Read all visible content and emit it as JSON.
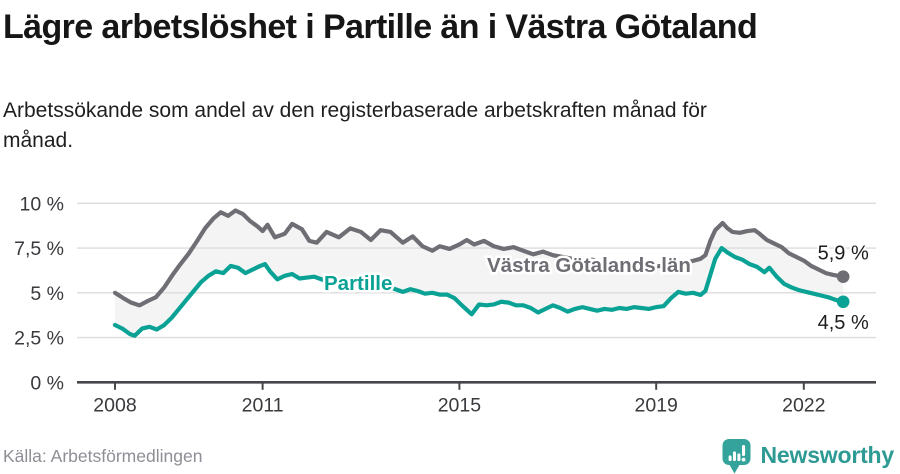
{
  "header": {
    "title": "Lägre arbetslöshet i Partille än i Västra Götaland",
    "subtitle": "Arbetssökande som andel av den registerbaserade arbetskraften månad för månad."
  },
  "chart_data": {
    "type": "line",
    "x_axis": {
      "label": "",
      "ticks": [
        2008,
        2011,
        2015,
        2019,
        2022
      ],
      "range": [
        2008,
        2022.8
      ]
    },
    "y_axis": {
      "label": "",
      "unit": "%",
      "ticks": [
        0,
        2.5,
        5,
        7.5,
        10
      ],
      "tick_labels": [
        "0 %",
        "2,5 %",
        "5 %",
        "7,5 %",
        "10 %"
      ],
      "range": [
        0,
        10.5
      ]
    },
    "grid": true,
    "area_between_series": true,
    "series": [
      {
        "name": "Västra Götalands län",
        "color": "#6e6e74",
        "end_label": "5,9 %",
        "end_value": 5.9,
        "points": [
          [
            2008.0,
            5.0
          ],
          [
            2008.17,
            4.7
          ],
          [
            2008.33,
            4.45
          ],
          [
            2008.5,
            4.3
          ],
          [
            2008.67,
            4.55
          ],
          [
            2008.83,
            4.75
          ],
          [
            2009.0,
            5.3
          ],
          [
            2009.17,
            6.0
          ],
          [
            2009.33,
            6.6
          ],
          [
            2009.5,
            7.2
          ],
          [
            2009.67,
            7.9
          ],
          [
            2009.83,
            8.6
          ],
          [
            2010.0,
            9.15
          ],
          [
            2010.15,
            9.5
          ],
          [
            2010.3,
            9.3
          ],
          [
            2010.45,
            9.6
          ],
          [
            2010.6,
            9.4
          ],
          [
            2010.75,
            9.0
          ],
          [
            2010.9,
            8.7
          ],
          [
            2011.0,
            8.45
          ],
          [
            2011.1,
            8.8
          ],
          [
            2011.25,
            8.1
          ],
          [
            2011.45,
            8.3
          ],
          [
            2011.6,
            8.85
          ],
          [
            2011.8,
            8.55
          ],
          [
            2011.95,
            7.9
          ],
          [
            2012.1,
            7.8
          ],
          [
            2012.3,
            8.4
          ],
          [
            2012.55,
            8.1
          ],
          [
            2012.78,
            8.6
          ],
          [
            2013.0,
            8.4
          ],
          [
            2013.2,
            7.95
          ],
          [
            2013.4,
            8.5
          ],
          [
            2013.6,
            8.4
          ],
          [
            2013.85,
            7.8
          ],
          [
            2014.05,
            8.15
          ],
          [
            2014.25,
            7.6
          ],
          [
            2014.45,
            7.35
          ],
          [
            2014.6,
            7.6
          ],
          [
            2014.8,
            7.45
          ],
          [
            2015.0,
            7.7
          ],
          [
            2015.15,
            7.95
          ],
          [
            2015.3,
            7.7
          ],
          [
            2015.5,
            7.9
          ],
          [
            2015.7,
            7.6
          ],
          [
            2015.9,
            7.45
          ],
          [
            2016.1,
            7.55
          ],
          [
            2016.3,
            7.35
          ],
          [
            2016.5,
            7.15
          ],
          [
            2016.7,
            7.3
          ],
          [
            2016.9,
            7.1
          ],
          [
            2017.1,
            7.0
          ],
          [
            2017.3,
            6.9
          ],
          [
            2017.5,
            6.75
          ],
          [
            2017.7,
            6.85
          ],
          [
            2017.9,
            6.7
          ],
          [
            2018.1,
            6.6
          ],
          [
            2018.3,
            6.5
          ],
          [
            2018.5,
            6.4
          ],
          [
            2018.7,
            6.5
          ],
          [
            2018.9,
            6.45
          ],
          [
            2019.1,
            6.5
          ],
          [
            2019.3,
            6.6
          ],
          [
            2019.5,
            6.7
          ],
          [
            2019.7,
            6.75
          ],
          [
            2019.9,
            6.9
          ],
          [
            2020.0,
            7.1
          ],
          [
            2020.1,
            7.9
          ],
          [
            2020.2,
            8.5
          ],
          [
            2020.35,
            8.9
          ],
          [
            2020.45,
            8.6
          ],
          [
            2020.55,
            8.4
          ],
          [
            2020.7,
            8.35
          ],
          [
            2020.85,
            8.45
          ],
          [
            2021.0,
            8.5
          ],
          [
            2021.1,
            8.3
          ],
          [
            2021.25,
            7.95
          ],
          [
            2021.4,
            7.75
          ],
          [
            2021.55,
            7.55
          ],
          [
            2021.7,
            7.2
          ],
          [
            2021.85,
            7.0
          ],
          [
            2022.0,
            6.8
          ],
          [
            2022.15,
            6.5
          ],
          [
            2022.3,
            6.3
          ],
          [
            2022.45,
            6.1
          ],
          [
            2022.6,
            6.0
          ],
          [
            2022.7,
            5.95
          ],
          [
            2022.8,
            5.9
          ]
        ]
      },
      {
        "name": "Partille",
        "color": "#0ba296",
        "end_label": "4,5 %",
        "end_value": 4.5,
        "points": [
          [
            2008.0,
            3.2
          ],
          [
            2008.15,
            3.0
          ],
          [
            2008.3,
            2.7
          ],
          [
            2008.4,
            2.6
          ],
          [
            2008.55,
            3.0
          ],
          [
            2008.7,
            3.1
          ],
          [
            2008.85,
            2.95
          ],
          [
            2009.0,
            3.2
          ],
          [
            2009.15,
            3.6
          ],
          [
            2009.3,
            4.1
          ],
          [
            2009.45,
            4.6
          ],
          [
            2009.6,
            5.1
          ],
          [
            2009.75,
            5.6
          ],
          [
            2009.9,
            5.95
          ],
          [
            2010.05,
            6.2
          ],
          [
            2010.2,
            6.1
          ],
          [
            2010.35,
            6.5
          ],
          [
            2010.5,
            6.4
          ],
          [
            2010.65,
            6.1
          ],
          [
            2010.8,
            6.3
          ],
          [
            2010.95,
            6.5
          ],
          [
            2011.05,
            6.6
          ],
          [
            2011.15,
            6.2
          ],
          [
            2011.3,
            5.75
          ],
          [
            2011.45,
            5.95
          ],
          [
            2011.6,
            6.05
          ],
          [
            2011.75,
            5.8
          ],
          [
            2011.9,
            5.85
          ],
          [
            2012.05,
            5.9
          ],
          [
            2012.2,
            5.75
          ],
          [
            2012.35,
            5.6
          ],
          [
            2012.5,
            5.7
          ],
          [
            2012.65,
            5.75
          ],
          [
            2012.8,
            5.65
          ],
          [
            2012.95,
            5.7
          ],
          [
            2013.1,
            5.6
          ],
          [
            2013.25,
            5.5
          ],
          [
            2013.4,
            5.45
          ],
          [
            2013.55,
            5.35
          ],
          [
            2013.7,
            5.2
          ],
          [
            2013.85,
            5.05
          ],
          [
            2014.0,
            5.2
          ],
          [
            2014.15,
            5.1
          ],
          [
            2014.3,
            4.95
          ],
          [
            2014.45,
            5.0
          ],
          [
            2014.6,
            4.9
          ],
          [
            2014.75,
            4.9
          ],
          [
            2014.9,
            4.7
          ],
          [
            2015.05,
            4.3
          ],
          [
            2015.25,
            3.8
          ],
          [
            2015.4,
            4.35
          ],
          [
            2015.55,
            4.3
          ],
          [
            2015.7,
            4.35
          ],
          [
            2015.85,
            4.5
          ],
          [
            2016.0,
            4.45
          ],
          [
            2016.15,
            4.3
          ],
          [
            2016.3,
            4.3
          ],
          [
            2016.45,
            4.15
          ],
          [
            2016.6,
            3.9
          ],
          [
            2016.75,
            4.1
          ],
          [
            2016.9,
            4.3
          ],
          [
            2017.05,
            4.15
          ],
          [
            2017.2,
            3.95
          ],
          [
            2017.35,
            4.1
          ],
          [
            2017.5,
            4.2
          ],
          [
            2017.65,
            4.1
          ],
          [
            2017.8,
            4.0
          ],
          [
            2017.95,
            4.1
          ],
          [
            2018.1,
            4.05
          ],
          [
            2018.25,
            4.15
          ],
          [
            2018.4,
            4.1
          ],
          [
            2018.55,
            4.2
          ],
          [
            2018.7,
            4.15
          ],
          [
            2018.85,
            4.1
          ],
          [
            2019.0,
            4.2
          ],
          [
            2019.15,
            4.25
          ],
          [
            2019.3,
            4.7
          ],
          [
            2019.45,
            5.05
          ],
          [
            2019.6,
            4.95
          ],
          [
            2019.75,
            5.0
          ],
          [
            2019.9,
            4.88
          ],
          [
            2020.0,
            5.1
          ],
          [
            2020.1,
            6.0
          ],
          [
            2020.2,
            6.9
          ],
          [
            2020.33,
            7.5
          ],
          [
            2020.45,
            7.25
          ],
          [
            2020.6,
            7.0
          ],
          [
            2020.75,
            6.85
          ],
          [
            2020.9,
            6.6
          ],
          [
            2021.05,
            6.45
          ],
          [
            2021.2,
            6.15
          ],
          [
            2021.3,
            6.4
          ],
          [
            2021.45,
            5.9
          ],
          [
            2021.6,
            5.5
          ],
          [
            2021.75,
            5.3
          ],
          [
            2021.9,
            5.15
          ],
          [
            2022.05,
            5.05
          ],
          [
            2022.2,
            4.95
          ],
          [
            2022.35,
            4.85
          ],
          [
            2022.5,
            4.75
          ],
          [
            2022.65,
            4.6
          ],
          [
            2022.8,
            4.5
          ]
        ]
      }
    ]
  },
  "footer": {
    "source": "Källa: Arbetsförmedlingen",
    "logo_text": "Newsworthy"
  },
  "colors": {
    "series_gray": "#6e6e74",
    "series_teal": "#0ba296",
    "area_fill": "#f4f4f4",
    "gridline": "#dcdcdc",
    "axis": "#47474b",
    "tick_text": "#3a3a3e",
    "end_label_text": "#1d1d1e",
    "logo_teal": "#33a39c"
  }
}
